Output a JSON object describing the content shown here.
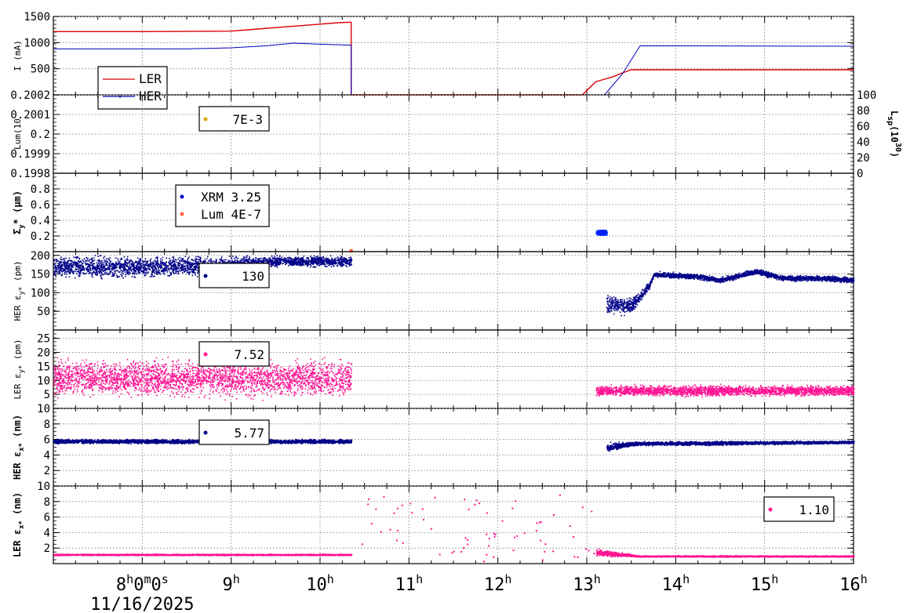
{
  "chart_data": [
    {
      "type": "line",
      "ylabel": "I (mA)",
      "ylim": [
        0,
        1500
      ],
      "yticks": [
        "1500",
        "1000",
        "500"
      ],
      "legend": [
        "LER",
        "HER"
      ],
      "series": [
        {
          "name": "LER",
          "color": "#dd0000",
          "points": [
            [
              7.0,
              1210
            ],
            [
              8.0,
              1210
            ],
            [
              9.0,
              1220
            ],
            [
              9.3,
              1260
            ],
            [
              9.6,
              1300
            ],
            [
              9.9,
              1340
            ],
            [
              10.2,
              1380
            ],
            [
              10.35,
              1390
            ],
            [
              10.35,
              0
            ],
            [
              12.95,
              0
            ],
            [
              13.1,
              250
            ],
            [
              13.2,
              300
            ],
            [
              13.3,
              350
            ],
            [
              13.4,
              420
            ],
            [
              13.5,
              480
            ],
            [
              16.0,
              480
            ]
          ]
        },
        {
          "name": "HER",
          "color": "#0000bb",
          "points": [
            [
              7.0,
              880
            ],
            [
              8.5,
              880
            ],
            [
              9.0,
              900
            ],
            [
              9.4,
              940
            ],
            [
              9.7,
              990
            ],
            [
              10.0,
              970
            ],
            [
              10.35,
              950
            ],
            [
              10.35,
              0
            ],
            [
              13.2,
              0
            ],
            [
              13.4,
              400
            ],
            [
              13.6,
              940
            ],
            [
              16.0,
              930
            ]
          ]
        }
      ]
    },
    {
      "type": "line",
      "ylabel": "Lum(10",
      "ylim": [
        0.1998,
        0.2002
      ],
      "yticks": [
        "0.2002",
        "0.2001",
        "0.2",
        "0.1999",
        "0.1998"
      ],
      "y2label": "L",
      "y2label_sub": "sp",
      "y2label_tail": "(10",
      "y2label_exp": "30",
      "y2label_close": ")",
      "y2ticks": [
        "100",
        "80",
        "60",
        "40",
        "20",
        "0"
      ],
      "legend_value": "7E-3",
      "legend_color": "#ddaa00",
      "series": []
    },
    {
      "type": "scatter",
      "ylabel": "Σ",
      "ylabel_sub": "y",
      "ylabel_tail": "* (μm)",
      "ylim": [
        0,
        1.0
      ],
      "yticks": [
        "0.8",
        "0.6",
        "0.4",
        "0.2"
      ],
      "legend": [
        {
          "name": "XRM",
          "value": "3.25",
          "color": "#0000cc"
        },
        {
          "name": "Lum",
          "value": "4E-7",
          "color": "#ff6644"
        }
      ],
      "series": [
        {
          "name": "XRM",
          "color": "#0022ff",
          "segments": [
            [
              13.1,
              13.22,
              0.22,
              0.28
            ]
          ]
        }
      ]
    },
    {
      "type": "scatter",
      "ylabel": "HER ε",
      "ylabel_sub": "y*",
      "ylabel_tail": " (pm)",
      "ylim": [
        0,
        210
      ],
      "yticks": [
        "200",
        "150",
        "100",
        "50"
      ],
      "legend_value": "130",
      "color": "#000088",
      "profile": [
        [
          7.0,
          170,
          30
        ],
        [
          8.0,
          170,
          30
        ],
        [
          9.0,
          175,
          25
        ],
        [
          9.5,
          185,
          15
        ],
        [
          10.35,
          185,
          15
        ],
        [
          10.35,
          null,
          0
        ],
        [
          13.2,
          null,
          0
        ],
        [
          13.22,
          70,
          30
        ],
        [
          13.5,
          65,
          20
        ],
        [
          13.7,
          120,
          10
        ],
        [
          13.75,
          150,
          8
        ],
        [
          14.2,
          145,
          8
        ],
        [
          14.5,
          135,
          8
        ],
        [
          14.9,
          158,
          8
        ],
        [
          15.2,
          140,
          8
        ],
        [
          15.6,
          140,
          8
        ],
        [
          16.0,
          135,
          8
        ]
      ]
    },
    {
      "type": "scatter",
      "ylabel": "LER ε",
      "ylabel_sub": "y*",
      "ylabel_tail": " (pm)",
      "ylim": [
        0,
        28
      ],
      "yticks": [
        "25",
        "20",
        "15",
        "10",
        "5"
      ],
      "legend_value": "7.52",
      "color": "#ff1493",
      "profile": [
        [
          7.0,
          11,
          7
        ],
        [
          10.35,
          11,
          7
        ],
        [
          10.35,
          null,
          0
        ],
        [
          13.1,
          null,
          0
        ],
        [
          13.1,
          6.5,
          2
        ],
        [
          16.0,
          6.5,
          2
        ]
      ]
    },
    {
      "type": "scatter",
      "ylabel": "HER ε",
      "ylabel_sub": "x*",
      "ylabel_tail": " (nm)",
      "ylim": [
        0,
        10
      ],
      "yticks": [
        "10",
        "8",
        "6",
        "4",
        "2"
      ],
      "legend_value": "5.77",
      "color": "#000088",
      "profile": [
        [
          7.0,
          5.8,
          0.3
        ],
        [
          10.35,
          5.8,
          0.3
        ],
        [
          10.35,
          null,
          0
        ],
        [
          13.2,
          null,
          0
        ],
        [
          13.22,
          5.0,
          0.6
        ],
        [
          13.5,
          5.5,
          0.3
        ],
        [
          16.0,
          5.7,
          0.2
        ]
      ]
    },
    {
      "type": "scatter",
      "ylabel": "LER ε",
      "ylabel_sub": "x*",
      "ylabel_tail": " (nm)",
      "ylim": [
        0,
        10
      ],
      "yticks": [
        "10",
        "8",
        "6",
        "4",
        "2"
      ],
      "legend_value": "1.10",
      "color": "#ff1493",
      "profile": [
        [
          7.0,
          1.2,
          0.1
        ],
        [
          10.35,
          1.2,
          0.1
        ],
        [
          10.35,
          null,
          0
        ],
        [
          13.05,
          null,
          0
        ],
        [
          13.1,
          1.5,
          0.5
        ],
        [
          13.6,
          1.0,
          0.1
        ],
        [
          16.0,
          1.0,
          0.1
        ]
      ]
    }
  ],
  "xaxis": {
    "range_hours": [
      7.0,
      16.0
    ],
    "major_ticks": [
      {
        "hour": 8,
        "label": "8",
        "sup": "h",
        "tail": "0",
        "sup2": "m",
        "tail2": "0",
        "sup3": "s"
      },
      {
        "hour": 9,
        "label": "9",
        "sup": "h"
      },
      {
        "hour": 10,
        "label": "10",
        "sup": "h"
      },
      {
        "hour": 11,
        "label": "11",
        "sup": "h"
      },
      {
        "hour": 12,
        "label": "12",
        "sup": "h"
      },
      {
        "hour": 13,
        "label": "13",
        "sup": "h"
      },
      {
        "hour": 14,
        "label": "14",
        "sup": "h"
      },
      {
        "hour": 15,
        "label": "15",
        "sup": "h"
      },
      {
        "hour": 16,
        "label": "16",
        "sup": "h"
      }
    ],
    "date_label": "11/16/2025"
  }
}
